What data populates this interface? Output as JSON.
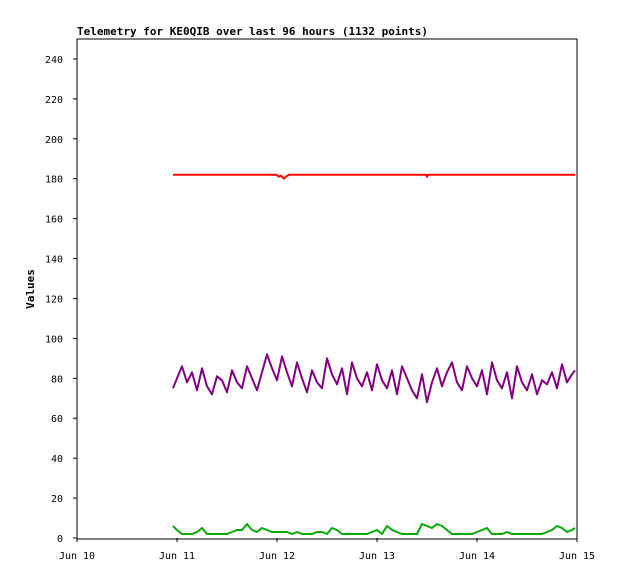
{
  "chart_data": {
    "type": "line",
    "title": "Telemetry for KE0QIB over last 96 hours (1132 points)",
    "xlabel": "",
    "ylabel": "Values",
    "x_ticks": [
      "Jun 10",
      "Jun 11",
      "Jun 12",
      "Jun 13",
      "Jun 14",
      "Jun 15"
    ],
    "xlim": [
      "Jun 10",
      "Jun 15"
    ],
    "ylim": [
      0,
      250
    ],
    "y_ticks": [
      0,
      20,
      40,
      60,
      80,
      100,
      120,
      140,
      160,
      180,
      200,
      220,
      240
    ],
    "grid": false,
    "series": [
      {
        "color": "#ff0000",
        "x": [
          10.96,
          11.5,
          11.99,
          12.02,
          12.04,
          12.07,
          12.09,
          12.12,
          12.5,
          13.0,
          13.49,
          13.5,
          13.51,
          14.0,
          14.5,
          14.98
        ],
        "values": [
          182,
          182,
          182,
          181,
          181.5,
          180,
          181,
          182,
          182,
          182,
          182,
          181,
          182,
          182,
          182,
          182
        ]
      },
      {
        "color": "#800080",
        "x": [
          10.96,
          11.0,
          11.05,
          11.1,
          11.15,
          11.2,
          11.25,
          11.3,
          11.35,
          11.4,
          11.45,
          11.5,
          11.55,
          11.6,
          11.65,
          11.7,
          11.75,
          11.8,
          11.85,
          11.9,
          11.95,
          12.0,
          12.05,
          12.1,
          12.15,
          12.2,
          12.25,
          12.3,
          12.35,
          12.4,
          12.45,
          12.5,
          12.55,
          12.6,
          12.65,
          12.7,
          12.75,
          12.8,
          12.85,
          12.9,
          12.95,
          13.0,
          13.05,
          13.1,
          13.15,
          13.2,
          13.25,
          13.3,
          13.35,
          13.4,
          13.45,
          13.5,
          13.55,
          13.6,
          13.65,
          13.7,
          13.75,
          13.8,
          13.85,
          13.9,
          13.95,
          14.0,
          14.05,
          14.1,
          14.15,
          14.2,
          14.25,
          14.3,
          14.35,
          14.4,
          14.45,
          14.5,
          14.55,
          14.6,
          14.65,
          14.7,
          14.75,
          14.8,
          14.85,
          14.9,
          14.95,
          14.98
        ],
        "values": [
          75,
          80,
          86,
          78,
          83,
          74,
          85,
          76,
          72,
          81,
          79,
          73,
          84,
          78,
          75,
          86,
          80,
          74,
          83,
          92,
          85,
          79,
          91,
          83,
          76,
          88,
          80,
          73,
          84,
          78,
          75,
          90,
          82,
          77,
          85,
          72,
          88,
          80,
          76,
          83,
          74,
          87,
          79,
          75,
          84,
          72,
          86,
          80,
          74,
          70,
          82,
          68,
          78,
          85,
          76,
          83,
          88,
          78,
          74,
          86,
          80,
          76,
          84,
          72,
          88,
          79,
          75,
          83,
          70,
          86,
          78,
          74,
          82,
          72,
          79,
          77,
          83,
          75,
          87,
          78,
          82,
          84
        ]
      },
      {
        "color": "#00aa00",
        "x": [
          10.96,
          11.0,
          11.05,
          11.1,
          11.15,
          11.2,
          11.25,
          11.3,
          11.35,
          11.4,
          11.45,
          11.5,
          11.55,
          11.6,
          11.65,
          11.7,
          11.75,
          11.8,
          11.85,
          11.9,
          11.95,
          12.0,
          12.05,
          12.1,
          12.15,
          12.2,
          12.25,
          12.3,
          12.35,
          12.4,
          12.45,
          12.5,
          12.55,
          12.6,
          12.65,
          12.7,
          12.75,
          12.8,
          12.85,
          12.9,
          12.95,
          13.0,
          13.05,
          13.1,
          13.15,
          13.2,
          13.25,
          13.3,
          13.35,
          13.4,
          13.45,
          13.5,
          13.55,
          13.6,
          13.65,
          13.7,
          13.75,
          13.8,
          13.85,
          13.9,
          13.95,
          14.0,
          14.05,
          14.1,
          14.15,
          14.2,
          14.25,
          14.3,
          14.35,
          14.4,
          14.45,
          14.5,
          14.55,
          14.6,
          14.65,
          14.7,
          14.75,
          14.8,
          14.85,
          14.9,
          14.95,
          14.98
        ],
        "values": [
          6,
          4,
          2,
          2,
          2,
          3,
          5,
          2,
          2,
          2,
          2,
          2,
          3,
          4,
          4,
          7,
          4,
          3,
          5,
          4,
          3,
          3,
          3,
          3,
          2,
          3,
          2,
          2,
          2,
          3,
          3,
          2,
          5,
          4,
          2,
          2,
          2,
          2,
          2,
          2,
          3,
          4,
          2,
          6,
          4,
          3,
          2,
          2,
          2,
          2,
          7,
          6,
          5,
          7,
          6,
          4,
          2,
          2,
          2,
          2,
          2,
          3,
          4,
          5,
          2,
          2,
          2,
          3,
          2,
          2,
          2,
          2,
          2,
          2,
          2,
          3,
          4,
          6,
          5,
          3,
          4,
          5
        ]
      }
    ]
  }
}
